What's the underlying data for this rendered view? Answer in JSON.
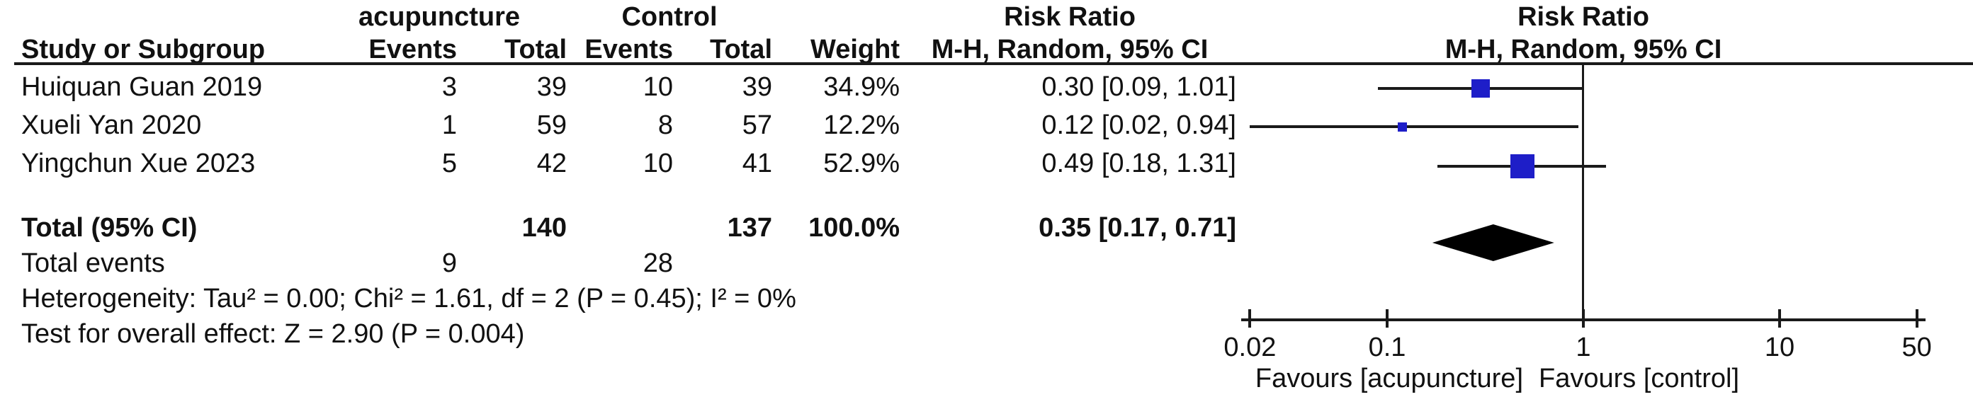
{
  "header": {
    "group1": "acupuncture",
    "group2": "Control",
    "study_col": "Study or Subgroup",
    "events_col1": "Events",
    "total_col1": "Total",
    "events_col2": "Events",
    "total_col2": "Total",
    "weight_col": "Weight",
    "effect_title_left": "Risk Ratio",
    "effect_method_left": "M-H, Random, 95% CI",
    "effect_title_right": "Risk Ratio",
    "effect_method_right": "M-H, Random, 95% CI"
  },
  "chart_data": {
    "type": "forest",
    "x_scale": "log10",
    "x_range": [
      0.02,
      50
    ],
    "axis_ticks": [
      0.02,
      0.1,
      1,
      10,
      50
    ],
    "axis_tick_labels": [
      "0.02",
      "0.1",
      "1",
      "10",
      "50"
    ],
    "null_value": 1,
    "favours_left": "Favours [acupuncture]",
    "favours_right": "Favours [control]",
    "studies": [
      {
        "name": "Huiquan Guan 2019",
        "events1": "3",
        "total1": "39",
        "events2": "10",
        "total2": "39",
        "weight": "34.9%",
        "weight_pct": 34.9,
        "rr": 0.3,
        "ci_low": 0.09,
        "ci_high": 1.01,
        "estimate_label": "0.30 [0.09, 1.01]"
      },
      {
        "name": "Xueli Yan 2020",
        "events1": "1",
        "total1": "59",
        "events2": "8",
        "total2": "57",
        "weight": "12.2%",
        "weight_pct": 12.2,
        "rr": 0.12,
        "ci_low": 0.02,
        "ci_high": 0.94,
        "estimate_label": "0.12 [0.02, 0.94]"
      },
      {
        "name": "Yingchun Xue 2023",
        "events1": "5",
        "total1": "42",
        "events2": "10",
        "total2": "41",
        "weight": "52.9%",
        "weight_pct": 52.9,
        "rr": 0.49,
        "ci_low": 0.18,
        "ci_high": 1.31,
        "estimate_label": "0.49 [0.18, 1.31]"
      }
    ],
    "total": {
      "name": "Total (95% CI)",
      "total1": "140",
      "total2": "137",
      "weight": "100.0%",
      "rr": 0.35,
      "ci_low": 0.17,
      "ci_high": 0.71,
      "estimate_label": "0.35 [0.17, 0.71]"
    },
    "total_events": {
      "label": "Total events",
      "events1": "9",
      "events2": "28"
    },
    "heterogeneity": "Heterogeneity: Tau² = 0.00; Chi² = 1.61, df = 2 (P = 0.45); I² = 0%",
    "overall_effect": "Test for overall effect: Z = 2.90 (P = 0.004)"
  },
  "colors": {
    "marker_blue": "#1e1ec8",
    "diamond_black": "#000000",
    "line_black": "#1a1a1a",
    "text": "#111111"
  }
}
